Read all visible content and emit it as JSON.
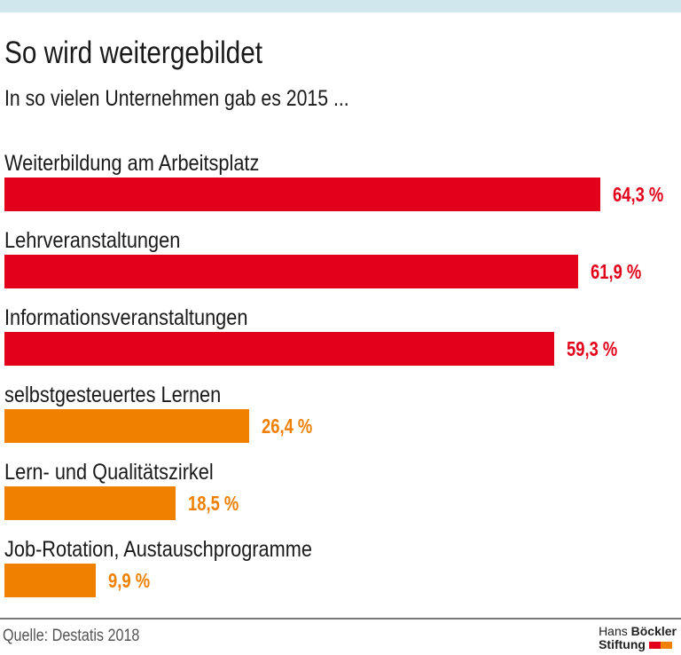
{
  "title": "So wird weitergebildet",
  "subtitle": "In so vielen Unternehmen gab es 2015 ...",
  "source": "Quelle: Destatis 2018",
  "logo": {
    "line1_light": "Hans",
    "line1_bold": "Böckler",
    "line2": "Stiftung"
  },
  "colors": {
    "red": "#e2001a",
    "orange": "#f08000",
    "band": "#d0e7ee"
  },
  "chart_data": {
    "type": "bar",
    "orientation": "horizontal",
    "categories": [
      "Weiterbildung am Arbeitsplatz",
      "Lehrveranstaltungen",
      "Informationsveranstaltungen",
      "selbstgesteuertes Lernen",
      "Lern- und Qualitätszirkel",
      "Job-Rotation, Austauschprogramme"
    ],
    "values": [
      64.3,
      61.9,
      59.3,
      26.4,
      18.5,
      9.9
    ],
    "labels": [
      "64,3 %",
      "61,9 %",
      "59,3 %",
      "26,4 %",
      "18,5 %",
      "9,9 %"
    ],
    "bar_colors": [
      "#e2001a",
      "#e2001a",
      "#e2001a",
      "#f08000",
      "#f08000",
      "#f08000"
    ],
    "unit": "%",
    "grid": false
  }
}
